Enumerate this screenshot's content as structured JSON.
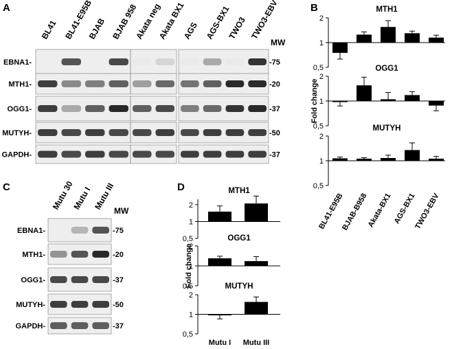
{
  "panel_letters": {
    "a": "A",
    "b": "B",
    "c": "C",
    "d": "D"
  },
  "mw_label": "MW",
  "panel_a": {
    "lanes": [
      "BL41",
      "BL41-E95B",
      "BJAB",
      "BJAB 958",
      "Akata neg",
      "Akata BX1",
      "AGS",
      "AGS-BX1",
      "TWO3",
      "TWO3-EBV"
    ],
    "rows": [
      {
        "label": "EBNA1-",
        "mw": "-75"
      },
      {
        "label": "MTH1-",
        "mw": "-20"
      },
      {
        "label": "OGG1-",
        "mw": "-37"
      },
      {
        "label": "MUTYH-",
        "mw": "-50"
      },
      {
        "label": "GAPDH-",
        "mw": "-37"
      }
    ],
    "band_intensity": {
      "EBNA1": [
        0,
        0.75,
        0,
        0.8,
        0.05,
        0.15,
        0.05,
        0.35,
        0.05,
        0.9
      ],
      "MTH1": [
        0.85,
        0.5,
        0.55,
        0.7,
        0.4,
        0.65,
        0.6,
        0.7,
        0.95,
        0.95
      ],
      "OGG1": [
        0.85,
        0.35,
        0.7,
        0.95,
        0.7,
        0.8,
        0.55,
        0.65,
        0.9,
        0.95
      ],
      "MUTYH": [
        0.85,
        0.8,
        0.85,
        0.8,
        0.8,
        0.85,
        0.8,
        0.85,
        0.85,
        0.85
      ],
      "GAPDH": [
        0.85,
        0.8,
        0.85,
        0.8,
        0.8,
        0.8,
        0.85,
        0.85,
        0.85,
        0.85
      ]
    }
  },
  "panel_c": {
    "lanes": [
      "Mutu 30",
      "Mutu I",
      "Mutu III"
    ],
    "rows": [
      {
        "label": "EBNA1-",
        "mw": "-75"
      },
      {
        "label": "MTH1-",
        "mw": "-20"
      },
      {
        "label": "OGG1-",
        "mw": "-37"
      },
      {
        "label": "MUTYH-",
        "mw": "-50"
      },
      {
        "label": "GAPDH-",
        "mw": "-37"
      }
    ],
    "band_intensity": {
      "EBNA1": [
        0,
        0.3,
        0.75
      ],
      "MTH1": [
        0.45,
        0.75,
        0.95
      ],
      "OGG1": [
        0.8,
        0.8,
        0.8
      ],
      "MUTYH": [
        0.85,
        0.85,
        0.85
      ],
      "GAPDH": [
        0.7,
        0.7,
        0.7
      ]
    }
  },
  "bar_color": "#000000",
  "chart_data": [
    {
      "type": "bar",
      "panel": "B",
      "title": "MTH1",
      "categories": [
        "BL41-E95B",
        "BJAB-B958",
        "Akata-BX1",
        "AGS-BX1",
        "TWO3-EBV"
      ],
      "values": [
        0.75,
        1.25,
        1.55,
        1.3,
        1.15
      ],
      "errors": [
        0.12,
        0.1,
        0.3,
        0.08,
        0.08
      ],
      "ylabel": "",
      "ylim": [
        0.5,
        2
      ],
      "yticks": [
        "2",
        "1",
        "0,5"
      ],
      "log_scale": true,
      "baseline": 1
    },
    {
      "type": "bar",
      "panel": "B",
      "title": "OGG1",
      "categories": [
        "BL41-E95B",
        "BJAB-B958",
        "Akata-BX1",
        "AGS-BX1",
        "TWO3-EBV"
      ],
      "values": [
        0.97,
        1.55,
        1.05,
        1.18,
        0.88
      ],
      "errors": [
        0.1,
        0.4,
        0.22,
        0.12,
        0.12
      ],
      "ylabel": "Fold change",
      "ylim": [
        0.5,
        2
      ],
      "yticks": [
        "2",
        "1",
        "0,5"
      ],
      "log_scale": true,
      "baseline": 1
    },
    {
      "type": "bar",
      "panel": "B",
      "title": "MUTYH",
      "categories": [
        "BL41-E95B",
        "BJAB-B958",
        "Akata-BX1",
        "AGS-BX1",
        "TWO3-EBV"
      ],
      "values": [
        1.07,
        1.06,
        1.08,
        1.35,
        1.06
      ],
      "errors": [
        0.04,
        0.03,
        0.09,
        0.3,
        0.07
      ],
      "ylabel": "",
      "ylim": [
        0.5,
        2
      ],
      "yticks": [
        "2",
        "1",
        "0,5"
      ],
      "log_scale": true,
      "baseline": 1
    },
    {
      "type": "bar",
      "panel": "D",
      "title": "MTH1",
      "categories": [
        "Mutu I",
        "Mutu III"
      ],
      "values": [
        1.5,
        2.1
      ],
      "errors": [
        0.4,
        0.75
      ],
      "ylabel": "",
      "ylim": [
        0.5,
        2.5
      ],
      "yticks": [
        "2",
        "1",
        "0,5"
      ],
      "log_scale": true,
      "baseline": 1
    },
    {
      "type": "bar",
      "panel": "D",
      "title": "OGG1",
      "categories": [
        "Mutu I",
        "Mutu III"
      ],
      "values": [
        1.3,
        1.18
      ],
      "errors": [
        0.1,
        0.2
      ],
      "ylabel": "Fold change",
      "ylim": [
        0.5,
        2
      ],
      "yticks": [
        "2",
        "1",
        "0,5"
      ],
      "log_scale": true,
      "baseline": 1
    },
    {
      "type": "bar",
      "panel": "D",
      "title": "MUTYH",
      "categories": [
        "Mutu I",
        "Mutu III"
      ],
      "values": [
        0.97,
        1.55
      ],
      "errors": [
        0.12,
        0.3
      ],
      "ylabel": "",
      "ylim": [
        0.5,
        2
      ],
      "yticks": [
        "2",
        "1",
        "0,5"
      ],
      "log_scale": true,
      "baseline": 1
    }
  ]
}
